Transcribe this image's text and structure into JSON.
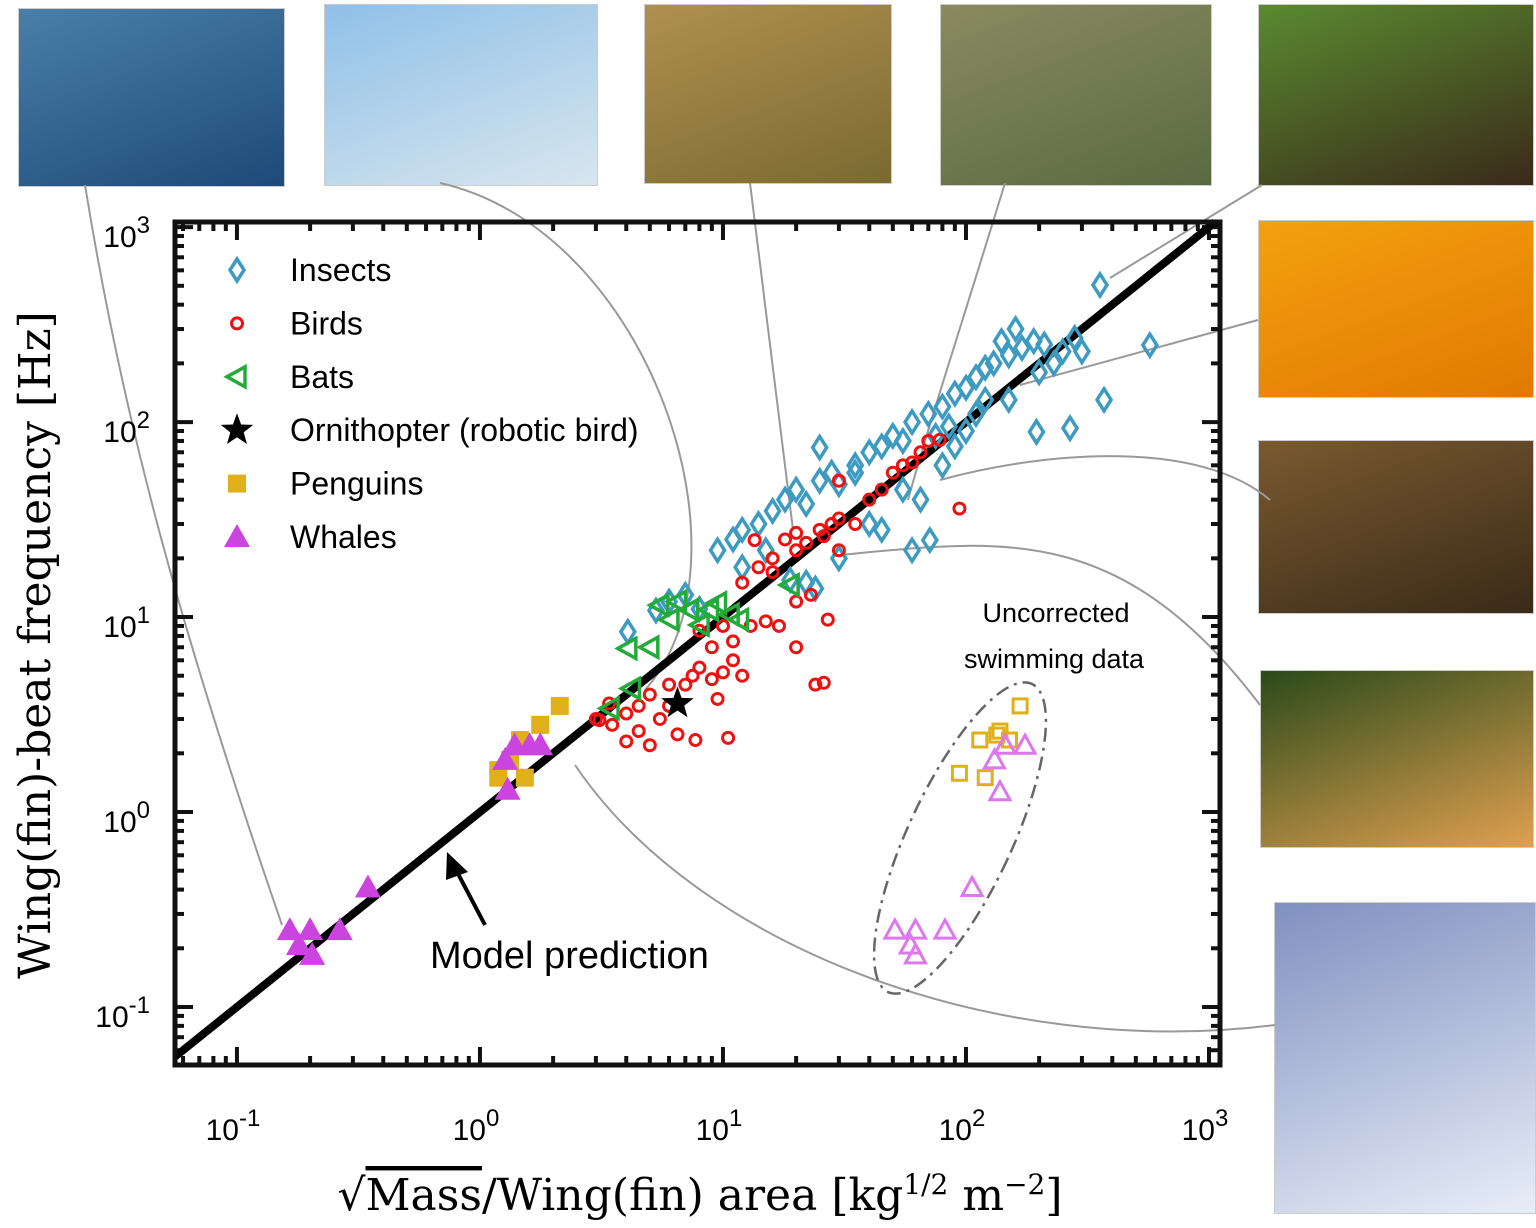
{
  "chart_data": {
    "type": "scatter",
    "title": "",
    "xlabel": "√Mass/Wing(fin) area [kg^1/2 m^-2]",
    "xlabel_parts": {
      "radical": "√",
      "radicand": "Mass",
      "rest": "/Wing(fin) area [kg",
      "exp1": "1/2",
      "mid": " m",
      "exp2": "−2",
      "end": "]"
    },
    "ylabel": "Wing(fin)-beat frequency [Hz]",
    "xscale": "log",
    "yscale": "log",
    "xlim": [
      0.0556,
      1110
    ],
    "ylim": [
      0.0504,
      1062
    ],
    "grid": false,
    "legend_placement": "top-left",
    "x_ticks": [
      {
        "base": "10",
        "exp": "-1"
      },
      {
        "base": "10",
        "exp": "0"
      },
      {
        "base": "10",
        "exp": "1"
      },
      {
        "base": "10",
        "exp": "2"
      },
      {
        "base": "10",
        "exp": "3"
      }
    ],
    "x_tick_values": [
      0.1,
      1,
      10,
      100,
      1000
    ],
    "y_ticks": [
      {
        "base": "10",
        "exp": "3"
      },
      {
        "base": "10",
        "exp": "2"
      },
      {
        "base": "10",
        "exp": "1"
      },
      {
        "base": "10",
        "exp": "0"
      },
      {
        "base": "10",
        "exp": "-1"
      }
    ],
    "y_tick_values": [
      1000,
      100,
      10,
      1,
      0.1
    ],
    "model_line": {
      "label": "Model prediction",
      "relation": "f = x",
      "color": "#000000"
    },
    "annotation_uncorrected": {
      "line1": "Uncorrected",
      "line2": "swimming data"
    },
    "series": [
      {
        "name": "Insects",
        "marker": "diamond-open",
        "color": "#3d9bc1",
        "points": [
          [
            9.5,
            22
          ],
          [
            11,
            25
          ],
          [
            12,
            28
          ],
          [
            14,
            30
          ],
          [
            16,
            35
          ],
          [
            18,
            40
          ],
          [
            20,
            45
          ],
          [
            22,
            38
          ],
          [
            25,
            50
          ],
          [
            28,
            55
          ],
          [
            30,
            48
          ],
          [
            35,
            60
          ],
          [
            40,
            70
          ],
          [
            45,
            75
          ],
          [
            50,
            85
          ],
          [
            55,
            80
          ],
          [
            60,
            100
          ],
          [
            70,
            110
          ],
          [
            80,
            120
          ],
          [
            90,
            140
          ],
          [
            100,
            150
          ],
          [
            110,
            170
          ],
          [
            120,
            190
          ],
          [
            130,
            200
          ],
          [
            150,
            220
          ],
          [
            170,
            240
          ],
          [
            190,
            260
          ],
          [
            210,
            250
          ],
          [
            250,
            230
          ],
          [
            280,
            270
          ],
          [
            160,
            300
          ],
          [
            140,
            260
          ],
          [
            120,
            130
          ],
          [
            195,
            89
          ],
          [
            268,
            93
          ],
          [
            370,
            130
          ],
          [
            571,
            248
          ],
          [
            356,
            505
          ],
          [
            25,
            74
          ],
          [
            18.9,
            15.5
          ],
          [
            4.06,
            8.4
          ],
          [
            5.3,
            10.8
          ],
          [
            71,
            24.8
          ],
          [
            60,
            22
          ],
          [
            40,
            30
          ],
          [
            30,
            20
          ],
          [
            22,
            15
          ],
          [
            24,
            14
          ],
          [
            35,
            55
          ],
          [
            15,
            22
          ],
          [
            80,
            60
          ],
          [
            100,
            90
          ],
          [
            55,
            45
          ],
          [
            45,
            28
          ],
          [
            150,
            130
          ],
          [
            200,
            180
          ],
          [
            7,
            13
          ],
          [
            6,
            12
          ],
          [
            8,
            11
          ],
          [
            12,
            18
          ],
          [
            65,
            40
          ],
          [
            90,
            75
          ],
          [
            230,
            200
          ],
          [
            300,
            230
          ],
          [
            110,
            110
          ],
          [
            85,
            95
          ],
          [
            75,
            85
          ]
        ]
      },
      {
        "name": "Birds",
        "marker": "circle-open",
        "color": "#ee1111",
        "points": [
          [
            3.0,
            3.0
          ],
          [
            3.5,
            2.8
          ],
          [
            4,
            3.2
          ],
          [
            4.5,
            3.5
          ],
          [
            5,
            4
          ],
          [
            5.5,
            3
          ],
          [
            6,
            3.5
          ],
          [
            7,
            4.5
          ],
          [
            7.5,
            5
          ],
          [
            8,
            5.5
          ],
          [
            9,
            4.8
          ],
          [
            10,
            5.2
          ],
          [
            11,
            6
          ],
          [
            12,
            5
          ],
          [
            9,
            7
          ],
          [
            8,
            8.5
          ],
          [
            10,
            9
          ],
          [
            13,
            9
          ],
          [
            15,
            9.5
          ],
          [
            17,
            9
          ],
          [
            20,
            7
          ],
          [
            24,
            4.5
          ],
          [
            10.5,
            2.4
          ],
          [
            6.5,
            2.5
          ],
          [
            4,
            2.3
          ],
          [
            5,
            2.2
          ],
          [
            7.7,
            2.34
          ],
          [
            3.1,
            2.96
          ],
          [
            12,
            15
          ],
          [
            14,
            18
          ],
          [
            16,
            20
          ],
          [
            18,
            25
          ],
          [
            20,
            27
          ],
          [
            22,
            24
          ],
          [
            25,
            28
          ],
          [
            28,
            30
          ],
          [
            30,
            32
          ],
          [
            35,
            30
          ],
          [
            40,
            40
          ],
          [
            45,
            45
          ],
          [
            50,
            55
          ],
          [
            55,
            60
          ],
          [
            60,
            62
          ],
          [
            65,
            70
          ],
          [
            70,
            80
          ],
          [
            78,
            81
          ],
          [
            94,
            36
          ],
          [
            30,
            50
          ],
          [
            20,
            22
          ],
          [
            16,
            17
          ],
          [
            13.5,
            24.8
          ],
          [
            20,
            12
          ],
          [
            23,
            13
          ],
          [
            30,
            22
          ],
          [
            26,
            26
          ],
          [
            27,
            9.7
          ],
          [
            26,
            4.6
          ],
          [
            11,
            7.5
          ],
          [
            6,
            4.5
          ],
          [
            4.5,
            2.6
          ],
          [
            3.4,
            3.6
          ],
          [
            9.5,
            3.8
          ]
        ]
      },
      {
        "name": "Bats",
        "marker": "triangle-left-open",
        "color": "#22aa3a",
        "points": [
          [
            4.06,
            6.9
          ],
          [
            3.43,
            3.4
          ],
          [
            4.2,
            4.3
          ],
          [
            5.5,
            11.5
          ],
          [
            7.3,
            10.9
          ],
          [
            8.8,
            10.9
          ],
          [
            10.7,
            10.3
          ],
          [
            18.9,
            14.6
          ],
          [
            5.0,
            7.0
          ],
          [
            8.05,
            9.1
          ],
          [
            11.7,
            9.7
          ],
          [
            6.05,
            9.7
          ],
          [
            6.5,
            12
          ],
          [
            9.5,
            11.8
          ]
        ]
      },
      {
        "name": "Ornithopter (robotic bird)",
        "marker": "star",
        "color": "#000000",
        "points": [
          [
            6.5,
            3.6
          ]
        ]
      },
      {
        "name": "Penguins",
        "marker": "square-filled",
        "color": "#e0b01a",
        "points": [
          [
            1.19,
            1.64
          ],
          [
            1.33,
            1.85
          ],
          [
            1.46,
            2.34
          ],
          [
            1.77,
            2.8
          ],
          [
            2.13,
            3.5
          ],
          [
            1.53,
            1.5
          ],
          [
            1.19,
            1.5
          ]
        ]
      },
      {
        "name": "Whales",
        "marker": "triangle-up-filled",
        "color": "#cc44e0",
        "points": [
          [
            0.165,
            0.248
          ],
          [
            0.2,
            0.248
          ],
          [
            0.18,
            0.208
          ],
          [
            0.204,
            0.185
          ],
          [
            0.265,
            0.248
          ],
          [
            0.346,
            0.41
          ],
          [
            1.27,
            1.85
          ],
          [
            1.39,
            2.2
          ],
          [
            1.6,
            2.2
          ],
          [
            1.77,
            2.2
          ],
          [
            1.3,
            1.3
          ]
        ]
      },
      {
        "name": "",
        "marker": "square-open",
        "color": "#e0b01a",
        "note_group": "Uncorrected",
        "points": [
          [
            167,
            3.5
          ],
          [
            114,
            2.34
          ],
          [
            134,
            2.48
          ],
          [
            151,
            2.34
          ],
          [
            94,
            1.58
          ],
          [
            120,
            1.5
          ],
          [
            138,
            2.6
          ]
        ]
      },
      {
        "name": "",
        "marker": "triangle-up-open",
        "color": "#dd77ee",
        "note_group": "Uncorrected",
        "points": [
          [
            145,
            2.2
          ],
          [
            175,
            2.2
          ],
          [
            131,
            1.85
          ],
          [
            138,
            1.27
          ],
          [
            106,
            0.41
          ],
          [
            82,
            0.248
          ],
          [
            62,
            0.248
          ],
          [
            51,
            0.248
          ],
          [
            59,
            0.208
          ],
          [
            62,
            0.185
          ]
        ]
      }
    ]
  },
  "photos": [
    {
      "name": "whale-tail-photo",
      "colors": [
        "#4a7fa8",
        "#1d4a78"
      ]
    },
    {
      "name": "seagulls-photo",
      "colors": [
        "#8fc0e8",
        "#d8e6ee"
      ]
    },
    {
      "name": "dragonfly-photo",
      "colors": [
        "#b09050",
        "#7a6a30"
      ]
    },
    {
      "name": "hummingbird-photo",
      "colors": [
        "#8a8a60",
        "#5a6a40"
      ]
    },
    {
      "name": "mosquito-photo",
      "colors": [
        "#5a8a30",
        "#3a2a1a"
      ]
    },
    {
      "name": "bee-photo",
      "colors": [
        "#f5a010",
        "#e07a00"
      ]
    },
    {
      "name": "beetle-photo",
      "colors": [
        "#7a5a30",
        "#3a2a18"
      ]
    },
    {
      "name": "moth-photo",
      "colors": [
        "#2a4a1a",
        "#e0a050"
      ]
    },
    {
      "name": "penguin-photo",
      "colors": [
        "#8090c0",
        "#e8eef8"
      ]
    }
  ]
}
